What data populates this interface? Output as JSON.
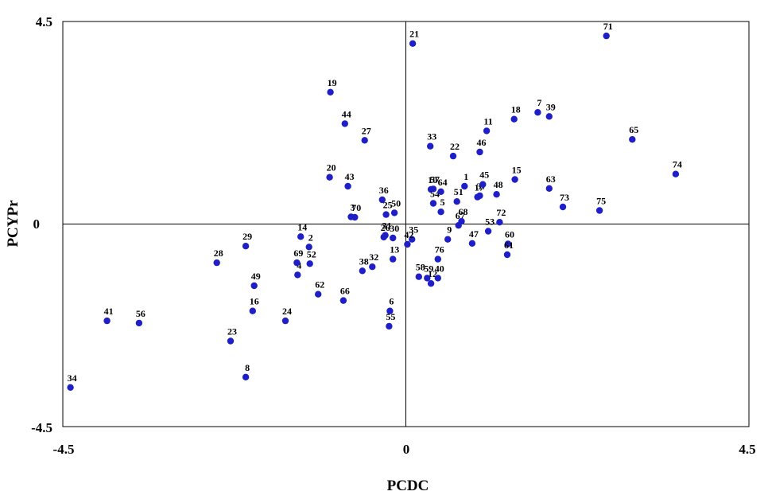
{
  "chart_data": {
    "type": "scatter",
    "title": "",
    "xlabel": "PCDC",
    "ylabel": "PCYPr",
    "xlim": [
      -4.5,
      4.5
    ],
    "ylim": [
      -4.5,
      4.5
    ],
    "x_ticks": [
      "-4.5",
      "0",
      "4.5"
    ],
    "y_ticks": [
      "4.5",
      "0",
      "-4.5"
    ],
    "grid": false,
    "reference_lines": [
      "x=0",
      "y=0"
    ],
    "marker_color": "#1f1fc8",
    "points": [
      {
        "label": "1",
        "x": 0.77,
        "y": 0.84
      },
      {
        "label": "2",
        "x": -1.27,
        "y": -0.51
      },
      {
        "label": "3",
        "x": -0.72,
        "y": 0.16
      },
      {
        "label": "4",
        "x": -1.42,
        "y": -1.13
      },
      {
        "label": "5",
        "x": 0.46,
        "y": 0.27
      },
      {
        "label": "6",
        "x": -0.21,
        "y": -1.93
      },
      {
        "label": "7",
        "x": 1.73,
        "y": 2.48
      },
      {
        "label": "8",
        "x": -2.1,
        "y": -3.4
      },
      {
        "label": "9",
        "x": 0.55,
        "y": -0.34
      },
      {
        "label": "10",
        "x": 0.33,
        "y": 0.77
      },
      {
        "label": "11",
        "x": 1.06,
        "y": 2.07
      },
      {
        "label": "12",
        "x": 0.33,
        "y": -1.32
      },
      {
        "label": "13",
        "x": -0.17,
        "y": -0.78
      },
      {
        "label": "14",
        "x": -1.38,
        "y": -0.28
      },
      {
        "label": "15",
        "x": 1.43,
        "y": 0.99
      },
      {
        "label": "16",
        "x": -2.01,
        "y": -1.93
      },
      {
        "label": "17",
        "x": 0.94,
        "y": 0.6
      },
      {
        "label": "18",
        "x": 1.42,
        "y": 2.33
      },
      {
        "label": "19",
        "x": -0.99,
        "y": 2.93
      },
      {
        "label": "20",
        "x": -1.0,
        "y": 1.04
      },
      {
        "label": "21",
        "x": 0.09,
        "y": 4.01
      },
      {
        "label": "22",
        "x": 0.62,
        "y": 1.51
      },
      {
        "label": "23",
        "x": -2.3,
        "y": -2.6
      },
      {
        "label": "24",
        "x": -1.58,
        "y": -2.15
      },
      {
        "label": "25",
        "x": -0.26,
        "y": 0.21
      },
      {
        "label": "26",
        "x": -0.29,
        "y": -0.29
      },
      {
        "label": "27",
        "x": -0.54,
        "y": 1.86
      },
      {
        "label": "28",
        "x": -2.48,
        "y": -0.86
      },
      {
        "label": "29",
        "x": -2.1,
        "y": -0.49
      },
      {
        "label": "30",
        "x": -0.17,
        "y": -0.31
      },
      {
        "label": "31",
        "x": -0.27,
        "y": -0.25
      },
      {
        "label": "32",
        "x": -0.44,
        "y": -0.95
      },
      {
        "label": "33",
        "x": 0.32,
        "y": 1.73
      },
      {
        "label": "34",
        "x": -4.4,
        "y": -3.63
      },
      {
        "label": "35",
        "x": 0.08,
        "y": -0.34
      },
      {
        "label": "36",
        "x": -0.31,
        "y": 0.54
      },
      {
        "label": "37",
        "x": 0.97,
        "y": 0.63
      },
      {
        "label": "38",
        "x": -0.57,
        "y": -1.04
      },
      {
        "label": "39",
        "x": 1.88,
        "y": 2.39
      },
      {
        "label": "40",
        "x": 0.42,
        "y": -1.2
      },
      {
        "label": "41",
        "x": -3.92,
        "y": -2.15
      },
      {
        "label": "42",
        "x": 0.02,
        "y": -0.45
      },
      {
        "label": "43",
        "x": -0.76,
        "y": 0.84
      },
      {
        "label": "44",
        "x": -0.8,
        "y": 2.23
      },
      {
        "label": "45",
        "x": 1.01,
        "y": 0.88
      },
      {
        "label": "46",
        "x": 0.97,
        "y": 1.6
      },
      {
        "label": "47",
        "x": 0.87,
        "y": -0.43
      },
      {
        "label": "48",
        "x": 1.19,
        "y": 0.66
      },
      {
        "label": "49",
        "x": -1.99,
        "y": -1.37
      },
      {
        "label": "50",
        "x": -0.15,
        "y": 0.25
      },
      {
        "label": "51",
        "x": 0.67,
        "y": 0.5
      },
      {
        "label": "52",
        "x": -1.26,
        "y": -0.88
      },
      {
        "label": "53",
        "x": 1.08,
        "y": -0.16
      },
      {
        "label": "54",
        "x": 0.36,
        "y": 0.46
      },
      {
        "label": "55",
        "x": -0.22,
        "y": -2.27
      },
      {
        "label": "56",
        "x": -3.5,
        "y": -2.2
      },
      {
        "label": "57",
        "x": 0.36,
        "y": 0.78
      },
      {
        "label": "58",
        "x": 0.17,
        "y": -1.17
      },
      {
        "label": "59",
        "x": 0.28,
        "y": -1.2
      },
      {
        "label": "60",
        "x": 1.34,
        "y": -0.44
      },
      {
        "label": "61",
        "x": 1.33,
        "y": -0.68
      },
      {
        "label": "62",
        "x": -1.15,
        "y": -1.56
      },
      {
        "label": "63",
        "x": 1.88,
        "y": 0.79
      },
      {
        "label": "64",
        "x": 0.46,
        "y": 0.72
      },
      {
        "label": "65",
        "x": 2.97,
        "y": 1.88
      },
      {
        "label": "66",
        "x": -0.82,
        "y": -1.7
      },
      {
        "label": "67",
        "x": 0.69,
        "y": -0.03
      },
      {
        "label": "68",
        "x": 0.73,
        "y": 0.06
      },
      {
        "label": "69",
        "x": -1.43,
        "y": -0.86
      },
      {
        "label": "70",
        "x": -0.67,
        "y": 0.15
      },
      {
        "label": "71",
        "x": 2.63,
        "y": 4.18
      },
      {
        "label": "72",
        "x": 1.23,
        "y": 0.04
      },
      {
        "label": "73",
        "x": 2.06,
        "y": 0.38
      },
      {
        "label": "74",
        "x": 3.54,
        "y": 1.11
      },
      {
        "label": "75",
        "x": 2.54,
        "y": 0.3
      },
      {
        "label": "76",
        "x": 0.42,
        "y": -0.78
      }
    ]
  }
}
